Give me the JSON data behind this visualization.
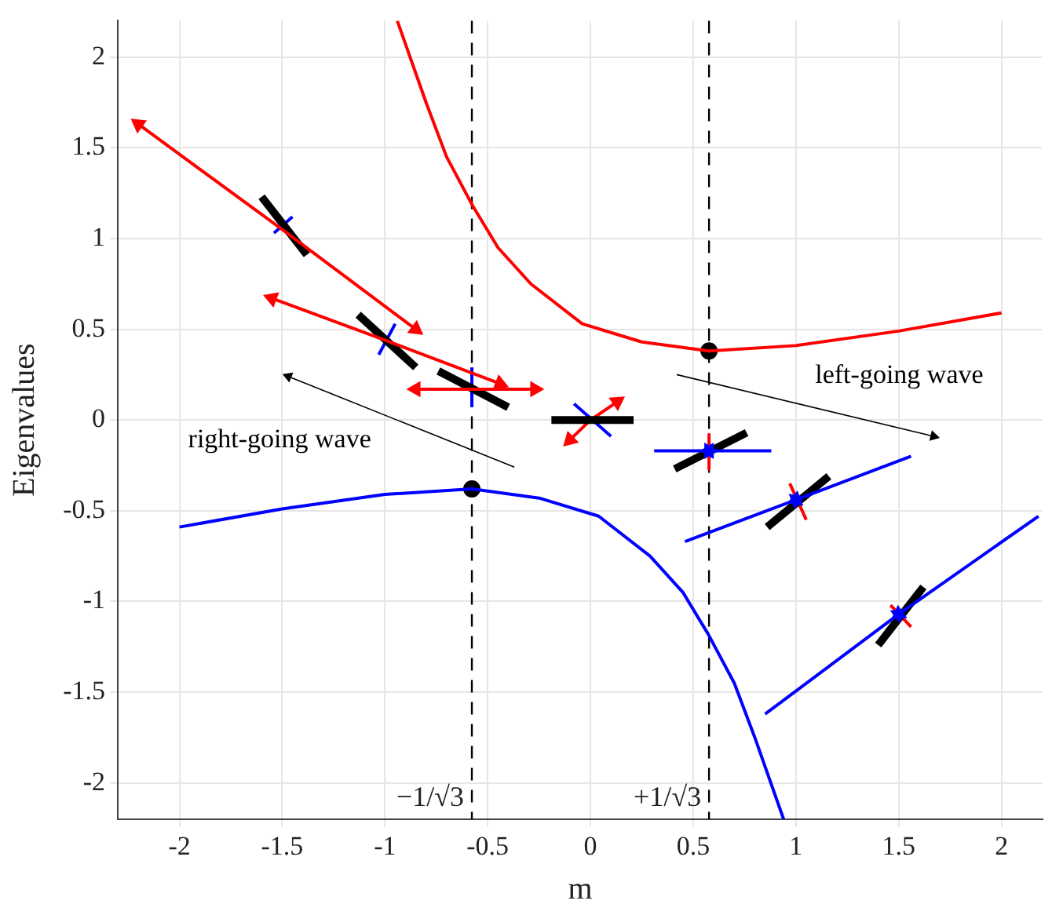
{
  "chart_data": {
    "type": "line",
    "xlabel": "m",
    "ylabel": "Eigenvalues",
    "xlim": [
      -2.3,
      2.2
    ],
    "ylim": [
      -2.2,
      2.2
    ],
    "xticks": [
      -2,
      -1.5,
      -1,
      -0.5,
      0,
      0.5,
      1,
      1.5,
      2
    ],
    "yticks": [
      -2,
      -1.5,
      -1,
      -0.5,
      0,
      0.5,
      1,
      1.5,
      2
    ],
    "grid": true,
    "legend": false,
    "marker": "none",
    "series": [
      {
        "color": "#ff0000",
        "x": [
          -0.94,
          -0.8,
          -0.7,
          -0.573,
          -0.45,
          -0.29,
          -0.04,
          0.25,
          0.577,
          1,
          1.5,
          2
        ],
        "values": [
          2.2,
          1.75,
          1.45,
          1.18,
          0.95,
          0.75,
          0.53,
          0.43,
          0.38,
          0.41,
          0.49,
          0.59
        ]
      },
      {
        "color": "#0000ff",
        "x": [
          -2,
          -1.5,
          -1,
          -0.577,
          -0.25,
          0.04,
          0.29,
          0.45,
          0.573,
          0.7,
          0.8,
          0.94
        ],
        "values": [
          -0.59,
          -0.49,
          -0.41,
          -0.38,
          -0.43,
          -0.53,
          -0.75,
          -0.95,
          -1.18,
          -1.45,
          -1.75,
          -2.2
        ]
      },
      {
        "color": "#ff0000",
        "marker": "triangle",
        "x": [
          -2.2,
          -1.5,
          -0.85
        ],
        "values": [
          1.63,
          1.05,
          0.5
        ]
      },
      {
        "color": "#000000",
        "x": [
          -1.6,
          -1.38
        ],
        "values": [
          1.23,
          0.91
        ]
      },
      {
        "color": "#0000ff",
        "x": [
          -1.54,
          -1.45
        ],
        "values": [
          1.03,
          1.12
        ]
      },
      {
        "color": "#ff0000",
        "marker": "triangle",
        "x": [
          -1.55,
          -1,
          -0.44
        ],
        "values": [
          0.67,
          0.44,
          0.2
        ]
      },
      {
        "color": "#000000",
        "x": [
          -1.13,
          -0.85
        ],
        "values": [
          0.58,
          0.29
        ]
      },
      {
        "color": "#0000ff",
        "x": [
          -1.03,
          -0.95
        ],
        "values": [
          0.36,
          0.53
        ]
      },
      {
        "color": "#ff0000",
        "marker": "triangle",
        "x": [
          -0.85,
          -0.577,
          -0.27
        ],
        "values": [
          0.17,
          0.17,
          0.17
        ]
      },
      {
        "color": "#000000",
        "x": [
          -0.74,
          -0.4
        ],
        "values": [
          0.27,
          0.07
        ]
      },
      {
        "color": "#0000ff",
        "x": [
          -0.577,
          -0.577
        ],
        "values": [
          0.07,
          0.29
        ]
      },
      {
        "color": "#000000",
        "x": [
          -0.19,
          0.21
        ],
        "values": [
          0,
          0
        ]
      },
      {
        "color": "#0000ff",
        "x": [
          -0.08,
          0.1
        ],
        "values": [
          0.09,
          -0.09
        ]
      },
      {
        "color": "#ff0000",
        "marker": "triangle",
        "x": [
          -0.1,
          0,
          0.13
        ],
        "values": [
          -0.11,
          0,
          0.1
        ]
      },
      {
        "color": "#0000ff",
        "marker": "triangle",
        "x": [
          0.31,
          0.577
        ],
        "values": [
          -0.17,
          -0.17
        ]
      },
      {
        "color": "#0000ff",
        "marker": "triangle",
        "x": [
          0.88,
          0.577
        ],
        "values": [
          -0.17,
          -0.17
        ]
      },
      {
        "color": "#000000",
        "x": [
          0.41,
          0.76
        ],
        "values": [
          -0.27,
          -0.07
        ]
      },
      {
        "color": "#ff0000",
        "x": [
          0.577,
          0.577
        ],
        "values": [
          -0.08,
          -0.27
        ]
      },
      {
        "color": "#0000ff",
        "marker": "triangle",
        "x": [
          0.46,
          1
        ],
        "values": [
          -0.67,
          -0.44
        ]
      },
      {
        "color": "#0000ff",
        "marker": "triangle",
        "x": [
          1.56,
          1
        ],
        "values": [
          -0.2,
          -0.44
        ]
      },
      {
        "color": "#000000",
        "x": [
          0.86,
          1.16
        ],
        "values": [
          -0.59,
          -0.31
        ]
      },
      {
        "color": "#ff0000",
        "x": [
          0.97,
          1.05
        ],
        "values": [
          -0.35,
          -0.55
        ]
      },
      {
        "color": "#0000ff",
        "marker": "triangle",
        "x": [
          0.85,
          1.5
        ],
        "values": [
          -1.62,
          -1.07
        ]
      },
      {
        "color": "#0000ff",
        "marker": "triangle",
        "x": [
          2.18,
          1.5
        ],
        "values": [
          -0.53,
          -1.07
        ]
      },
      {
        "color": "#000000",
        "x": [
          1.4,
          1.62
        ],
        "values": [
          -1.24,
          -0.92
        ]
      },
      {
        "color": "#ff0000",
        "x": [
          1.46,
          1.56
        ],
        "values": [
          -1.02,
          -1.14
        ]
      },
      {
        "color": "#000000",
        "marker": "triangle",
        "x": [
          -0.37,
          -1.47
        ],
        "values": [
          -0.26,
          0.24
        ]
      },
      {
        "color": "#000000",
        "marker": "triangle",
        "x": [
          0.42,
          1.67
        ],
        "values": [
          0.25,
          -0.09
        ]
      },
      {
        "type": "scatter",
        "color": "#000000",
        "marker": "circle",
        "x": [
          -0.577,
          0.577
        ],
        "values": [
          -0.38,
          0.38
        ]
      }
    ],
    "ref_lines": [
      {
        "axis": "x",
        "value": -0.577,
        "label": "−1/√3",
        "color": "#000000",
        "line_style": "dashed"
      },
      {
        "axis": "x",
        "value": 0.577,
        "label": "+1/√3",
        "color": "#000000",
        "line_style": "dashed"
      }
    ],
    "annotations": [
      "right-going wave",
      "left-going wave"
    ]
  }
}
